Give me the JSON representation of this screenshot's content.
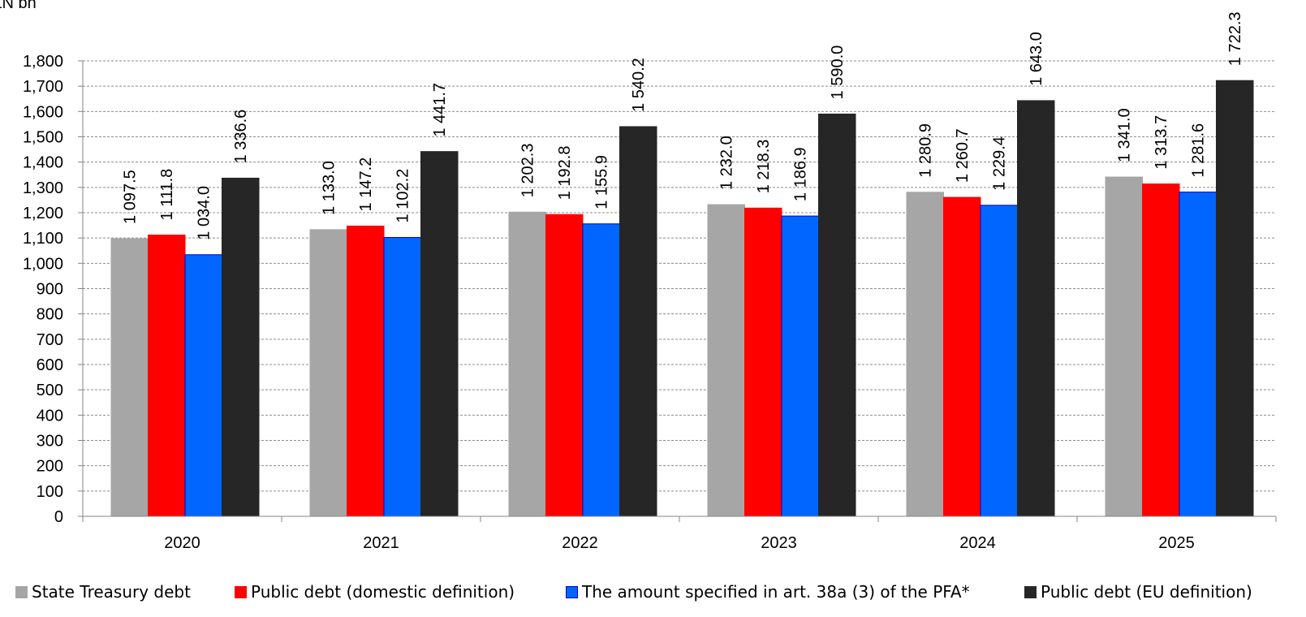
{
  "chart_data": {
    "type": "bar",
    "unit_label": "PLN bn",
    "categories": [
      "2020",
      "2021",
      "2022",
      "2023",
      "2024",
      "2025"
    ],
    "y_ticks": [
      "0",
      "100",
      "200",
      "300",
      "400",
      "500",
      "600",
      "700",
      "800",
      "900",
      "1,000",
      "1,100",
      "1,200",
      "1,300",
      "1,400",
      "1,500",
      "1,600",
      "1,700",
      "1,800"
    ],
    "ylim": [
      0,
      1800
    ],
    "grid": true,
    "legend_position": "bottom",
    "series": [
      {
        "name": "State Treasury debt",
        "color": "#a6a6a6",
        "edge": "#a6a6a6",
        "values": [
          1097.5,
          1133.0,
          1202.3,
          1232.0,
          1280.9,
          1341.0
        ],
        "labels": [
          "1 097.5",
          "1 133.0",
          "1 202.3",
          "1 232.0",
          "1 280.9",
          "1 341.0"
        ]
      },
      {
        "name": "Public debt (domestic definition)",
        "color": "#ff0000",
        "edge": "#ff0000",
        "values": [
          1111.8,
          1147.2,
          1192.8,
          1218.3,
          1260.7,
          1313.7
        ],
        "labels": [
          "1 111.8",
          "1 147.2",
          "1 192.8",
          "1 218.3",
          "1 260.7",
          "1 313.7"
        ]
      },
      {
        "name": "The amount specified in art. 38a (3) of the PFA*",
        "color": "#0066ff",
        "edge": "#0000cc",
        "values": [
          1034.0,
          1102.2,
          1155.9,
          1186.9,
          1229.4,
          1281.6
        ],
        "labels": [
          "1 034.0",
          "1 102.2",
          "1 155.9",
          "1 186.9",
          "1 229.4",
          "1 281.6"
        ]
      },
      {
        "name": "Public debt (EU definition)",
        "color": "#262626",
        "edge": "#262626",
        "values": [
          1336.6,
          1441.7,
          1540.2,
          1590.0,
          1643.0,
          1722.3
        ],
        "labels": [
          "1 336.6",
          "1 441.7",
          "1 540.2",
          "1 590.0",
          "1 643.0",
          "1 722.3"
        ]
      }
    ]
  }
}
